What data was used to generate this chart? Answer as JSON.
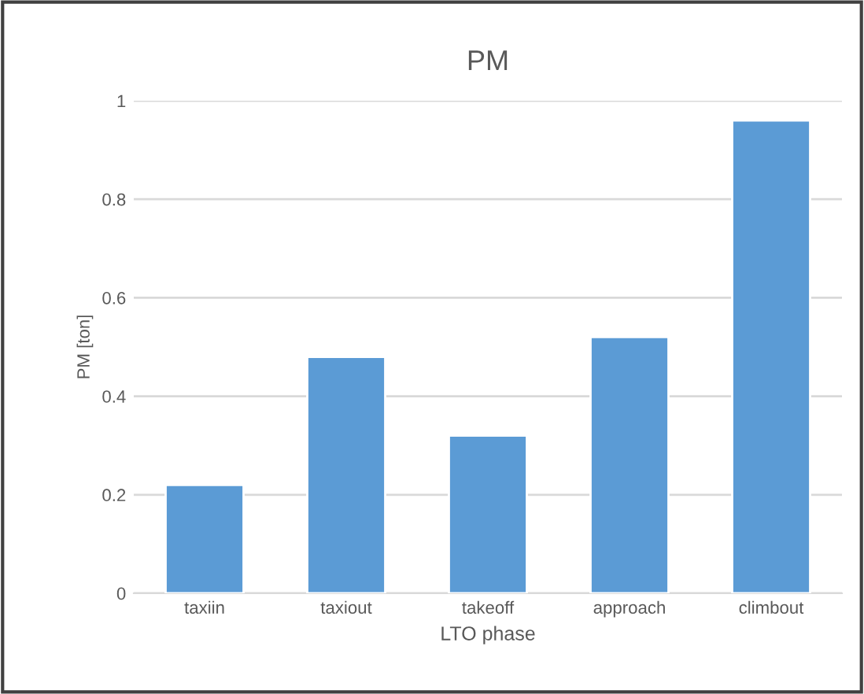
{
  "chart_data": {
    "type": "bar",
    "title": "PM",
    "xlabel": "LTO phase",
    "ylabel": "PM [ton]",
    "categories": [
      "taxiin",
      "taxiout",
      "takeoff",
      "approach",
      "climbout"
    ],
    "values": [
      0.22,
      0.48,
      0.32,
      0.52,
      0.96
    ],
    "color": "#5b9bd5",
    "ylim": [
      0,
      1
    ],
    "yticks": [
      0,
      0.2,
      0.4,
      0.6,
      0.8,
      1
    ],
    "grid": "y"
  }
}
